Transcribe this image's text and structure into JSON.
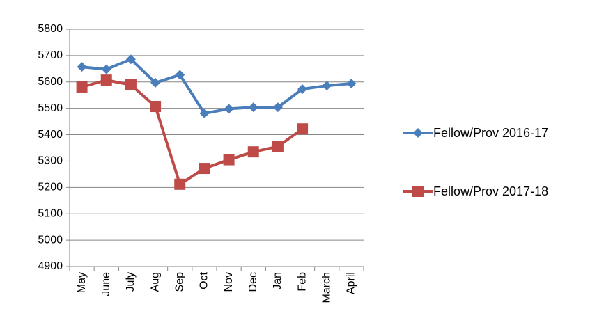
{
  "chart_data": {
    "type": "line",
    "categories": [
      "May",
      "June",
      "July",
      "Aug",
      "Sep",
      "Oct",
      "Nov",
      "Dec",
      "Jan",
      "Feb",
      "March",
      "April"
    ],
    "series": [
      {
        "name": "Fellow/Prov 2016-17",
        "color": "#4a7ebb",
        "marker": "diamond",
        "values": [
          5657,
          5648,
          5686,
          5597,
          5627,
          5481,
          5498,
          5504,
          5504,
          5573,
          5586,
          5594
        ]
      },
      {
        "name": "Fellow/Prov 2017-18",
        "color": "#be4b48",
        "marker": "square",
        "values": [
          5581,
          5607,
          5589,
          5507,
          5212,
          5272,
          5305,
          5335,
          5355,
          5422,
          null,
          null
        ]
      }
    ],
    "ylim": [
      4900,
      5800
    ],
    "yticks": [
      4900,
      5000,
      5100,
      5200,
      5300,
      5400,
      5500,
      5600,
      5700,
      5800
    ],
    "grid": true,
    "legend": "right"
  }
}
